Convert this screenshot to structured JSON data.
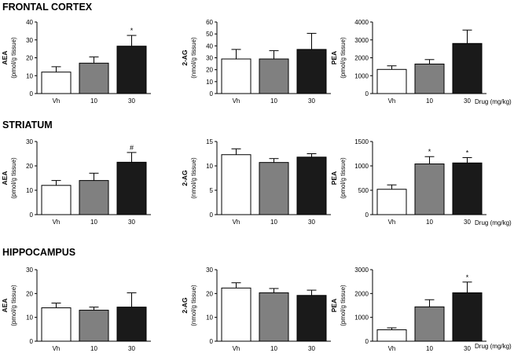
{
  "figure": {
    "sections": [
      {
        "title": "FRONTAL CORTEX"
      },
      {
        "title": "STRIATUM"
      },
      {
        "title": "HIPPOCAMPUS"
      }
    ],
    "drug_label": "Drug (mg/kg)"
  },
  "colors": {
    "vh": "#ffffff",
    "dose10": "#808080",
    "dose30": "#1a1a1a",
    "outline": "#000000"
  },
  "chart_data": [
    {
      "type": "bar",
      "section": "FRONTAL CORTEX",
      "ylabel": "AEA",
      "yunit": "(pmol/g tissue)",
      "categories": [
        "Vh",
        "10",
        "30"
      ],
      "values": [
        12,
        17,
        26.5
      ],
      "errors": [
        3,
        3.5,
        6
      ],
      "ylim": [
        0,
        40
      ],
      "yticks": [
        "0",
        "10",
        "20",
        "30",
        "40"
      ],
      "sig": [
        "",
        "",
        "*"
      ],
      "grid": false
    },
    {
      "type": "bar",
      "section": "FRONTAL CORTEX",
      "ylabel": "2-AG",
      "yunit": "(nmol/g tissue)",
      "categories": [
        "Vh",
        "10",
        "30"
      ],
      "values": [
        29,
        29,
        37
      ],
      "errors": [
        8,
        7,
        13.5
      ],
      "ylim": [
        0,
        60
      ],
      "yticks": [
        "0",
        "10",
        "20",
        "30",
        "40",
        "50",
        "60"
      ],
      "sig": [
        "",
        "",
        ""
      ],
      "grid": false
    },
    {
      "type": "bar",
      "section": "FRONTAL CORTEX",
      "ylabel": "PEA",
      "yunit": "(pmol/g tissue)",
      "categories": [
        "Vh",
        "10",
        "30"
      ],
      "values": [
        1350,
        1650,
        2800
      ],
      "errors": [
        200,
        250,
        750
      ],
      "ylim": [
        0,
        4000
      ],
      "yticks": [
        "0",
        "1000",
        "2000",
        "3000",
        "4000"
      ],
      "sig": [
        "",
        "",
        ""
      ],
      "grid": false
    },
    {
      "type": "bar",
      "section": "STRIATUM",
      "ylabel": "AEA",
      "yunit": "(pmol/g tissue)",
      "categories": [
        "Vh",
        "10",
        "30"
      ],
      "values": [
        12,
        14,
        21.5
      ],
      "errors": [
        2,
        3,
        4
      ],
      "ylim": [
        0,
        30
      ],
      "yticks": [
        "0",
        "10",
        "20",
        "30"
      ],
      "sig": [
        "",
        "",
        "#"
      ],
      "grid": false
    },
    {
      "type": "bar",
      "section": "STRIATUM",
      "ylabel": "2-AG",
      "yunit": "(nmol/g tissue)",
      "categories": [
        "Vh",
        "10",
        "30"
      ],
      "values": [
        12.3,
        10.7,
        11.8
      ],
      "errors": [
        1.2,
        0.8,
        0.7
      ],
      "ylim": [
        0,
        15
      ],
      "yticks": [
        "0",
        "5",
        "10",
        "15"
      ],
      "sig": [
        "",
        "",
        ""
      ],
      "grid": false
    },
    {
      "type": "bar",
      "section": "STRIATUM",
      "ylabel": "PEA",
      "yunit": "(pmol/g tissue)",
      "categories": [
        "Vh",
        "10",
        "30"
      ],
      "values": [
        520,
        1040,
        1060
      ],
      "errors": [
        90,
        150,
        110
      ],
      "ylim": [
        0,
        1500
      ],
      "yticks": [
        "0",
        "500",
        "1000",
        "1500"
      ],
      "sig": [
        "",
        "*",
        "*"
      ],
      "grid": false
    },
    {
      "type": "bar",
      "section": "HIPPOCAMPUS",
      "ylabel": "AEA",
      "yunit": "(pmol/g tissue)",
      "categories": [
        "Vh",
        "10",
        "30"
      ],
      "values": [
        14,
        13,
        14.3
      ],
      "errors": [
        2,
        1.3,
        6
      ],
      "ylim": [
        0,
        30
      ],
      "yticks": [
        "0",
        "10",
        "20",
        "30"
      ],
      "sig": [
        "",
        "",
        ""
      ],
      "grid": false
    },
    {
      "type": "bar",
      "section": "HIPPOCAMPUS",
      "ylabel": "2-AG",
      "yunit": "(nmol/g tissue)",
      "categories": [
        "Vh",
        "10",
        "30"
      ],
      "values": [
        22.3,
        20.3,
        19.2
      ],
      "errors": [
        2.2,
        1.8,
        2.2
      ],
      "ylim": [
        0,
        30
      ],
      "yticks": [
        "0",
        "10",
        "20",
        "30"
      ],
      "sig": [
        "",
        "",
        ""
      ],
      "grid": false
    },
    {
      "type": "bar",
      "section": "HIPPOCAMPUS",
      "ylabel": "PEA",
      "yunit": "(pmol/g tissue)",
      "categories": [
        "Vh",
        "10",
        "30"
      ],
      "values": [
        480,
        1440,
        2030
      ],
      "errors": [
        80,
        300,
        450
      ],
      "ylim": [
        0,
        3000
      ],
      "yticks": [
        "0",
        "1000",
        "2000",
        "3000"
      ],
      "sig": [
        "",
        "",
        "*"
      ],
      "grid": false
    }
  ]
}
